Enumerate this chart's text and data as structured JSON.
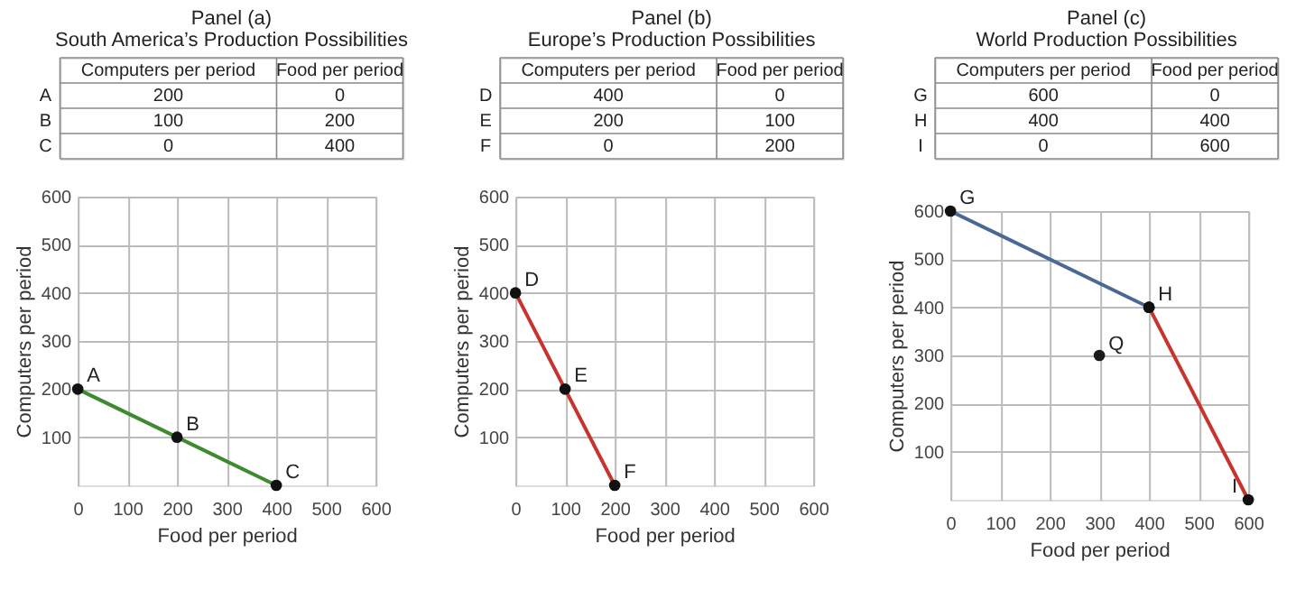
{
  "chart_data": [
    {
      "type": "other",
      "title": "Panel (a)",
      "subtitle": "South America’s Production Possibilities",
      "categories": [
        "A",
        "B",
        "C"
      ],
      "data_labels": true,
      "series": [
        {
          "name": "Computers per period",
          "values": [
            200,
            100,
            0
          ]
        },
        {
          "name": "Food per period",
          "values": [
            0,
            200,
            400
          ]
        }
      ]
    },
    {
      "type": "line",
      "xlabel": "Food per period",
      "ylabel": "Computers per period",
      "xlim": [
        0,
        600
      ],
      "ylim": [
        0,
        600
      ],
      "xticks": [
        0,
        100,
        200,
        300,
        400,
        500,
        600
      ],
      "yticks": [
        100,
        200,
        300,
        400,
        500,
        600
      ],
      "grid": true,
      "marker": "circle",
      "series": [
        {
          "color": "#3d8a2f",
          "x": [
            0,
            200,
            400
          ],
          "values": [
            200,
            100,
            0
          ]
        }
      ],
      "annotations": [
        {
          "text": "A",
          "x": 0,
          "y": 200
        },
        {
          "text": "B",
          "x": 200,
          "y": 100
        },
        {
          "text": "C",
          "x": 400,
          "y": 0
        }
      ]
    },
    {
      "type": "other",
      "title": "Panel (b)",
      "subtitle": "Europe’s Production Possibilities",
      "categories": [
        "D",
        "E",
        "F"
      ],
      "data_labels": true,
      "series": [
        {
          "name": "Computers per period",
          "values": [
            400,
            200,
            0
          ]
        },
        {
          "name": "Food per period",
          "values": [
            0,
            100,
            200
          ]
        }
      ]
    },
    {
      "type": "line",
      "xlabel": "Food per period",
      "ylabel": "Computers per period",
      "xlim": [
        0,
        600
      ],
      "ylim": [
        0,
        600
      ],
      "xticks": [
        0,
        100,
        200,
        300,
        400,
        500,
        600
      ],
      "yticks": [
        100,
        200,
        300,
        400,
        500,
        600
      ],
      "grid": true,
      "marker": "circle",
      "series": [
        {
          "color": "#c8332b",
          "x": [
            0,
            100,
            200
          ],
          "values": [
            400,
            200,
            0
          ]
        }
      ],
      "annotations": [
        {
          "text": "D",
          "x": 0,
          "y": 400
        },
        {
          "text": "E",
          "x": 100,
          "y": 200
        },
        {
          "text": "F",
          "x": 200,
          "y": 0
        }
      ]
    },
    {
      "type": "other",
      "title": "Panel (c)",
      "subtitle": "World Production Possibilities",
      "categories": [
        "G",
        "H",
        "I"
      ],
      "data_labels": true,
      "series": [
        {
          "name": "Computers per period",
          "values": [
            600,
            400,
            0
          ]
        },
        {
          "name": "Food per period",
          "values": [
            0,
            400,
            600
          ]
        }
      ]
    },
    {
      "type": "line",
      "xlabel": "Food per period",
      "ylabel": "Computers per period",
      "xlim": [
        0,
        600
      ],
      "ylim": [
        0,
        600
      ],
      "xticks": [
        0,
        100,
        200,
        300,
        400,
        500,
        600
      ],
      "yticks": [
        100,
        200,
        300,
        400,
        500,
        600
      ],
      "grid": true,
      "marker": "circle",
      "series": [
        {
          "color": "#4a6896",
          "x": [
            0,
            400
          ],
          "values": [
            600,
            400
          ]
        },
        {
          "color": "#c8332b",
          "x": [
            400,
            600
          ],
          "values": [
            400,
            0
          ]
        },
        {
          "type": "scatter",
          "name": "Q",
          "color": "#1a1a1a",
          "x": [
            300
          ],
          "values": [
            300
          ]
        }
      ],
      "annotations": [
        {
          "text": "G",
          "x": 0,
          "y": 600
        },
        {
          "text": "H",
          "x": 400,
          "y": 400
        },
        {
          "text": "I",
          "x": 600,
          "y": 0
        }
      ]
    }
  ]
}
